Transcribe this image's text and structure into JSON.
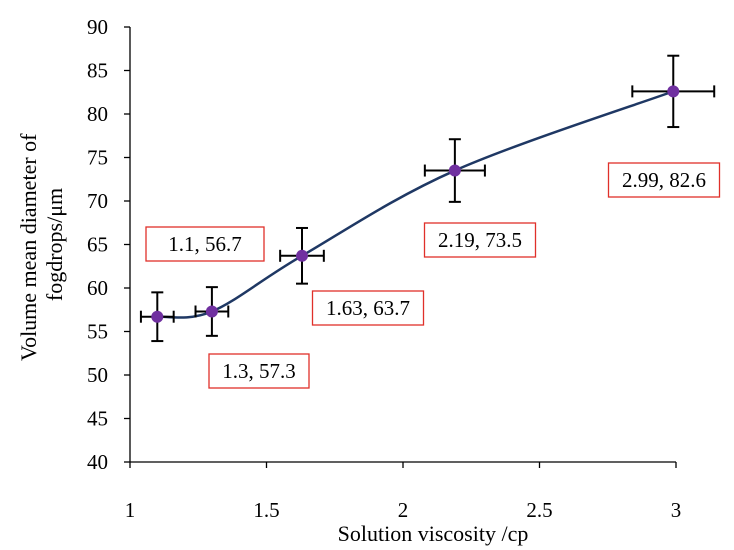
{
  "chart_data": {
    "type": "scatter",
    "title": "",
    "xlabel": "Solution viscosity /cp",
    "ylabel_lines": [
      "Volume mean diameter of",
      "fogdrops/μm"
    ],
    "xlim": [
      1,
      3
    ],
    "ylim": [
      40,
      90
    ],
    "xticks": [
      "1",
      "1.5",
      "2",
      "2.5",
      "3"
    ],
    "yticks": [
      "40",
      "45",
      "50",
      "55",
      "60",
      "65",
      "70",
      "75",
      "80",
      "85",
      "90"
    ],
    "grid": false,
    "legend": "none",
    "smoothed_line": true,
    "colors": {
      "marker": "#7030A0",
      "line": "#1F3864",
      "error_bar": "#000000",
      "label_border": "#E0302A"
    },
    "points": [
      {
        "x": 1.1,
        "y": 56.7,
        "x_err": 0.06,
        "y_err": 2.8,
        "label": "1.1, 56.7"
      },
      {
        "x": 1.3,
        "y": 57.3,
        "x_err": 0.06,
        "y_err": 2.8,
        "label": "1.3, 57.3"
      },
      {
        "x": 1.63,
        "y": 63.7,
        "x_err": 0.08,
        "y_err": 3.2,
        "label": "1.63, 63.7"
      },
      {
        "x": 2.19,
        "y": 73.5,
        "x_err": 0.11,
        "y_err": 3.6,
        "label": "2.19, 73.5"
      },
      {
        "x": 2.99,
        "y": 82.6,
        "x_err": 0.15,
        "y_err": 4.1,
        "label": "2.99, 82.6"
      }
    ]
  }
}
